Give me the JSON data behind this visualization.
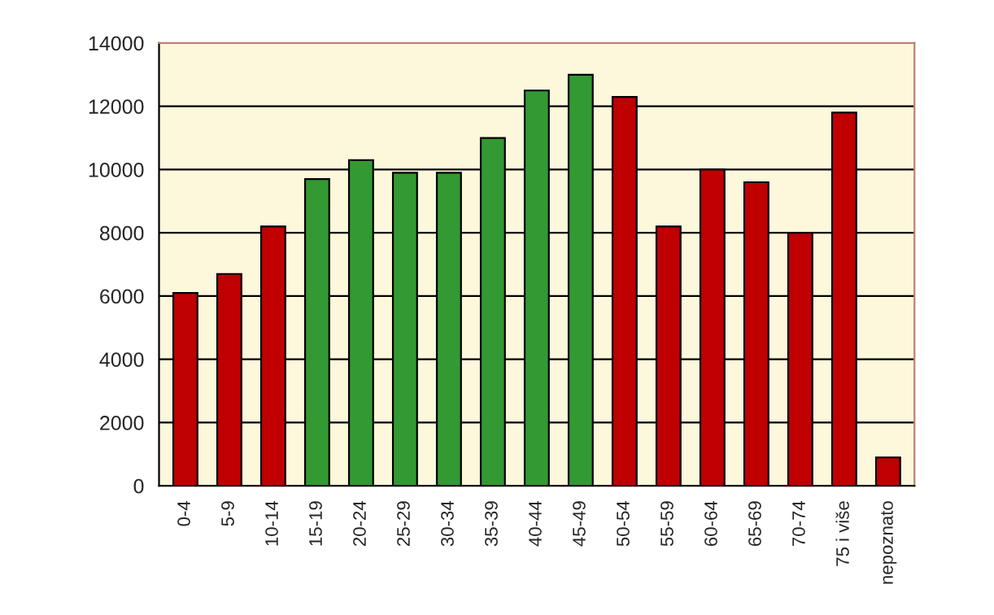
{
  "chart_data": {
    "type": "bar",
    "categories": [
      "0-4",
      "5-9",
      "10-14",
      "15-19",
      "20-24",
      "25-29",
      "30-34",
      "35-39",
      "40-44",
      "45-49",
      "50-54",
      "55-59",
      "60-64",
      "65-69",
      "70-74",
      "75 i više",
      "nepoznato"
    ],
    "values": [
      6100,
      6700,
      8200,
      9700,
      10300,
      9900,
      9900,
      11000,
      12500,
      13000,
      12300,
      8200,
      10000,
      9600,
      8000,
      11800,
      900
    ],
    "colors": [
      "#c00000",
      "#c00000",
      "#c00000",
      "#339933",
      "#339933",
      "#339933",
      "#339933",
      "#339933",
      "#339933",
      "#339933",
      "#c00000",
      "#c00000",
      "#c00000",
      "#c00000",
      "#c00000",
      "#c00000",
      "#c00000"
    ],
    "ylim": [
      0,
      14000
    ],
    "yticks": [
      0,
      2000,
      4000,
      6000,
      8000,
      10000,
      12000,
      14000
    ],
    "grid": "y"
  }
}
